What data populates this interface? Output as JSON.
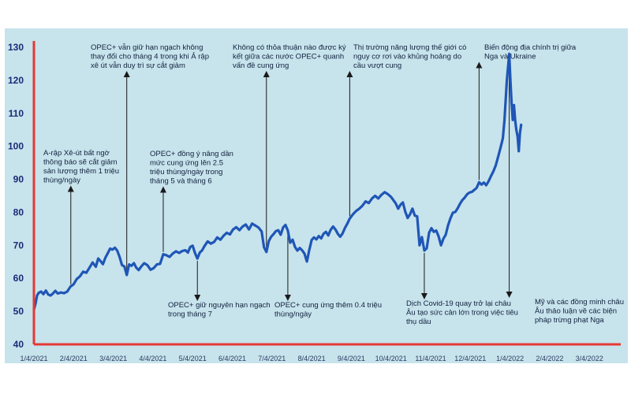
{
  "colors": {
    "panel_bg": "#c7e3ec",
    "axis": "#e53935",
    "line": "#1f56b6",
    "arrow": "#1a1a1a",
    "ytick": "#1c2a78"
  },
  "chart_data": {
    "type": "line",
    "title": "",
    "xlabel": "",
    "ylabel": "",
    "ylim": [
      40,
      130
    ],
    "yticks": [
      40,
      50,
      60,
      70,
      80,
      90,
      100,
      110,
      120,
      130
    ],
    "x_tick_labels": [
      "1/4/2021",
      "2/4/2021",
      "3/4/2021",
      "4/4/2021",
      "5/4/2021",
      "6/4/2021",
      "7/4/2021",
      "8/4/2021",
      "9/4/2021",
      "10/4/2021",
      "11/4/2021",
      "12/4/2021",
      "1/4/2022",
      "2/4/2022",
      "3/4/2022"
    ],
    "grid": false,
    "legend": "none",
    "series": [
      {
        "values": [
          [
            0.0,
            50.5
          ],
          [
            0.04,
            52.3
          ],
          [
            0.08,
            54.8
          ],
          [
            0.12,
            55.6
          ],
          [
            0.18,
            56.0
          ],
          [
            0.24,
            55.2
          ],
          [
            0.3,
            56.3
          ],
          [
            0.36,
            55.1
          ],
          [
            0.42,
            54.8
          ],
          [
            0.48,
            55.4
          ],
          [
            0.54,
            56.2
          ],
          [
            0.6,
            55.4
          ],
          [
            0.68,
            55.7
          ],
          [
            0.76,
            55.5
          ],
          [
            0.84,
            56.0
          ],
          [
            0.92,
            57.5
          ],
          [
            1.0,
            58.2
          ],
          [
            1.08,
            59.8
          ],
          [
            1.16,
            60.6
          ],
          [
            1.24,
            62.0
          ],
          [
            1.32,
            61.7
          ],
          [
            1.4,
            63.2
          ],
          [
            1.48,
            64.8
          ],
          [
            1.56,
            63.5
          ],
          [
            1.62,
            66.0
          ],
          [
            1.68,
            65.2
          ],
          [
            1.74,
            64.3
          ],
          [
            1.8,
            66.2
          ],
          [
            1.86,
            67.6
          ],
          [
            1.92,
            69.0
          ],
          [
            1.98,
            68.7
          ],
          [
            2.04,
            69.3
          ],
          [
            2.1,
            68.4
          ],
          [
            2.16,
            66.5
          ],
          [
            2.22,
            64.0
          ],
          [
            2.28,
            63.6
          ],
          [
            2.34,
            61.0
          ],
          [
            2.4,
            64.2
          ],
          [
            2.46,
            63.8
          ],
          [
            2.52,
            64.6
          ],
          [
            2.58,
            63.2
          ],
          [
            2.64,
            62.5
          ],
          [
            2.7,
            63.5
          ],
          [
            2.78,
            64.6
          ],
          [
            2.86,
            64.0
          ],
          [
            2.94,
            62.6
          ],
          [
            3.02,
            63.1
          ],
          [
            3.1,
            64.2
          ],
          [
            3.18,
            64.4
          ],
          [
            3.26,
            67.3
          ],
          [
            3.34,
            67.0
          ],
          [
            3.42,
            66.5
          ],
          [
            3.5,
            67.5
          ],
          [
            3.58,
            68.2
          ],
          [
            3.66,
            67.7
          ],
          [
            3.74,
            68.3
          ],
          [
            3.82,
            68.5
          ],
          [
            3.88,
            67.8
          ],
          [
            3.94,
            69.5
          ],
          [
            4.0,
            69.9
          ],
          [
            4.06,
            67.7
          ],
          [
            4.12,
            66.0
          ],
          [
            4.18,
            67.8
          ],
          [
            4.24,
            68.5
          ],
          [
            4.3,
            69.8
          ],
          [
            4.38,
            71.2
          ],
          [
            4.46,
            70.5
          ],
          [
            4.54,
            71.0
          ],
          [
            4.62,
            72.4
          ],
          [
            4.7,
            71.7
          ],
          [
            4.78,
            72.9
          ],
          [
            4.86,
            73.8
          ],
          [
            4.94,
            73.3
          ],
          [
            5.02,
            74.8
          ],
          [
            5.1,
            75.5
          ],
          [
            5.18,
            74.6
          ],
          [
            5.26,
            75.7
          ],
          [
            5.34,
            76.3
          ],
          [
            5.42,
            74.8
          ],
          [
            5.5,
            76.6
          ],
          [
            5.58,
            76.0
          ],
          [
            5.66,
            75.4
          ],
          [
            5.74,
            74.2
          ],
          [
            5.8,
            69.4
          ],
          [
            5.86,
            68.0
          ],
          [
            5.92,
            71.3
          ],
          [
            5.98,
            72.6
          ],
          [
            6.04,
            73.4
          ],
          [
            6.1,
            74.3
          ],
          [
            6.16,
            74.6
          ],
          [
            6.22,
            73.2
          ],
          [
            6.28,
            75.4
          ],
          [
            6.34,
            76.2
          ],
          [
            6.4,
            74.5
          ],
          [
            6.46,
            70.8
          ],
          [
            6.52,
            71.7
          ],
          [
            6.58,
            69.5
          ],
          [
            6.64,
            68.4
          ],
          [
            6.7,
            69.2
          ],
          [
            6.76,
            68.5
          ],
          [
            6.82,
            67.5
          ],
          [
            6.88,
            65.1
          ],
          [
            6.94,
            68.6
          ],
          [
            7.0,
            71.6
          ],
          [
            7.06,
            72.4
          ],
          [
            7.12,
            71.8
          ],
          [
            7.18,
            72.8
          ],
          [
            7.24,
            72.1
          ],
          [
            7.3,
            73.5
          ],
          [
            7.36,
            74.1
          ],
          [
            7.42,
            73.0
          ],
          [
            7.48,
            74.7
          ],
          [
            7.54,
            75.7
          ],
          [
            7.6,
            74.8
          ],
          [
            7.66,
            73.5
          ],
          [
            7.72,
            72.6
          ],
          [
            7.78,
            73.6
          ],
          [
            7.84,
            75.3
          ],
          [
            7.9,
            76.6
          ],
          [
            7.96,
            78.1
          ],
          [
            8.04,
            79.4
          ],
          [
            8.12,
            80.4
          ],
          [
            8.2,
            81.1
          ],
          [
            8.28,
            82.0
          ],
          [
            8.36,
            83.3
          ],
          [
            8.44,
            82.8
          ],
          [
            8.52,
            84.2
          ],
          [
            8.6,
            85.0
          ],
          [
            8.68,
            84.2
          ],
          [
            8.76,
            85.3
          ],
          [
            8.84,
            86.1
          ],
          [
            8.92,
            85.5
          ],
          [
            9.0,
            84.7
          ],
          [
            9.06,
            83.7
          ],
          [
            9.12,
            82.7
          ],
          [
            9.18,
            81.1
          ],
          [
            9.24,
            82.3
          ],
          [
            9.3,
            83.0
          ],
          [
            9.36,
            80.2
          ],
          [
            9.42,
            78.3
          ],
          [
            9.48,
            79.4
          ],
          [
            9.54,
            81.1
          ],
          [
            9.6,
            79.0
          ],
          [
            9.66,
            78.8
          ],
          [
            9.72,
            70.0
          ],
          [
            9.78,
            72.5
          ],
          [
            9.84,
            68.4
          ],
          [
            9.9,
            69.1
          ],
          [
            9.96,
            73.8
          ],
          [
            10.02,
            75.2
          ],
          [
            10.08,
            74.1
          ],
          [
            10.14,
            74.5
          ],
          [
            10.2,
            72.7
          ],
          [
            10.26,
            70.0
          ],
          [
            10.32,
            72.0
          ],
          [
            10.38,
            73.2
          ],
          [
            10.44,
            76.1
          ],
          [
            10.5,
            78.2
          ],
          [
            10.56,
            79.9
          ],
          [
            10.62,
            80.1
          ],
          [
            10.68,
            81.2
          ],
          [
            10.74,
            82.6
          ],
          [
            10.8,
            83.7
          ],
          [
            10.86,
            84.5
          ],
          [
            10.92,
            85.5
          ],
          [
            10.98,
            86.0
          ],
          [
            11.04,
            86.2
          ],
          [
            11.1,
            86.8
          ],
          [
            11.16,
            87.4
          ],
          [
            11.22,
            89.1
          ],
          [
            11.28,
            88.4
          ],
          [
            11.34,
            89.0
          ],
          [
            11.4,
            88.2
          ],
          [
            11.46,
            89.4
          ],
          [
            11.52,
            91.0
          ],
          [
            11.58,
            92.4
          ],
          [
            11.64,
            94.2
          ],
          [
            11.7,
            96.8
          ],
          [
            11.76,
            99.5
          ],
          [
            11.82,
            102.4
          ],
          [
            11.86,
            108.0
          ],
          [
            11.89,
            114.0
          ],
          [
            11.92,
            120.0
          ],
          [
            11.95,
            124.0
          ],
          [
            11.98,
            128.0
          ],
          [
            12.01,
            120.0
          ],
          [
            12.04,
            113.0
          ],
          [
            12.07,
            108.0
          ],
          [
            12.1,
            112.5
          ],
          [
            12.13,
            108.0
          ],
          [
            12.16,
            105.0
          ],
          [
            12.19,
            103.0
          ],
          [
            12.22,
            98.5
          ],
          [
            12.25,
            104.0
          ],
          [
            12.28,
            106.5
          ]
        ]
      }
    ],
    "annotations": [
      {
        "lines": [
          "A-rập Xê-út bất ngờ",
          "thông báo sẽ cắt giảm",
          "sản lượng thêm 1 triệu",
          "thùng/ngày"
        ],
        "x": 0.93,
        "y": 57.5,
        "dir": "up"
      },
      {
        "lines": [
          "OPEC+ vẫn giữ hạn ngạch không",
          "thay đổi cho tháng 4 trong khi Ả rập",
          "xê út vẫn duy trì sự cắt giảm"
        ],
        "x": 2.34,
        "y": 61.0,
        "dir": "up"
      },
      {
        "lines": [
          "OPEC+ đồng ý nâng dần",
          "mức cung ứng lên 2.5",
          "triệu thùng/ngày trong",
          "tháng 5 và tháng 6"
        ],
        "x": 3.26,
        "y": 67.3,
        "dir": "up"
      },
      {
        "lines": [
          "OPEC+ giữ nguyên hạn ngạch",
          "trong tháng 7"
        ],
        "x": 4.12,
        "y": 66.0,
        "dir": "down"
      },
      {
        "lines": [
          "Không có thỏa thuận nào được ký",
          "kết giữa các nước OPEC+ quanh",
          "vấn đề cung ứng"
        ],
        "x": 5.86,
        "y": 68.0,
        "dir": "up"
      },
      {
        "lines": [
          "OPEC+ cung ứng thêm 0.4 triệu",
          "thùng/ngày"
        ],
        "x": 6.4,
        "y": 74.5,
        "dir": "down"
      },
      {
        "lines": [
          "Thị trường năng lượng thế giới có",
          "nguy cơ rơi vào khủng hoảng do",
          "cầu vượt cung"
        ],
        "x": 7.96,
        "y": 78.1,
        "dir": "up"
      },
      {
        "lines": [
          "Dịch Covid-19 quay trở lại châu",
          "Âu tạo sức cản lớn trong việc tiêu",
          "thụ dầu"
        ],
        "x": 9.84,
        "y": 68.4,
        "dir": "down"
      },
      {
        "lines": [
          "Biến động địa chính trị giữa",
          "Nga và Ukraine"
        ],
        "x": 11.22,
        "y": 89.1,
        "dir": "up"
      },
      {
        "lines": [
          "Mỹ và các đồng minh châu",
          "Âu thảo luận về các biện",
          "pháp trừng phạt Nga"
        ],
        "x": 11.98,
        "y": 128.0,
        "dir": "down"
      }
    ]
  }
}
